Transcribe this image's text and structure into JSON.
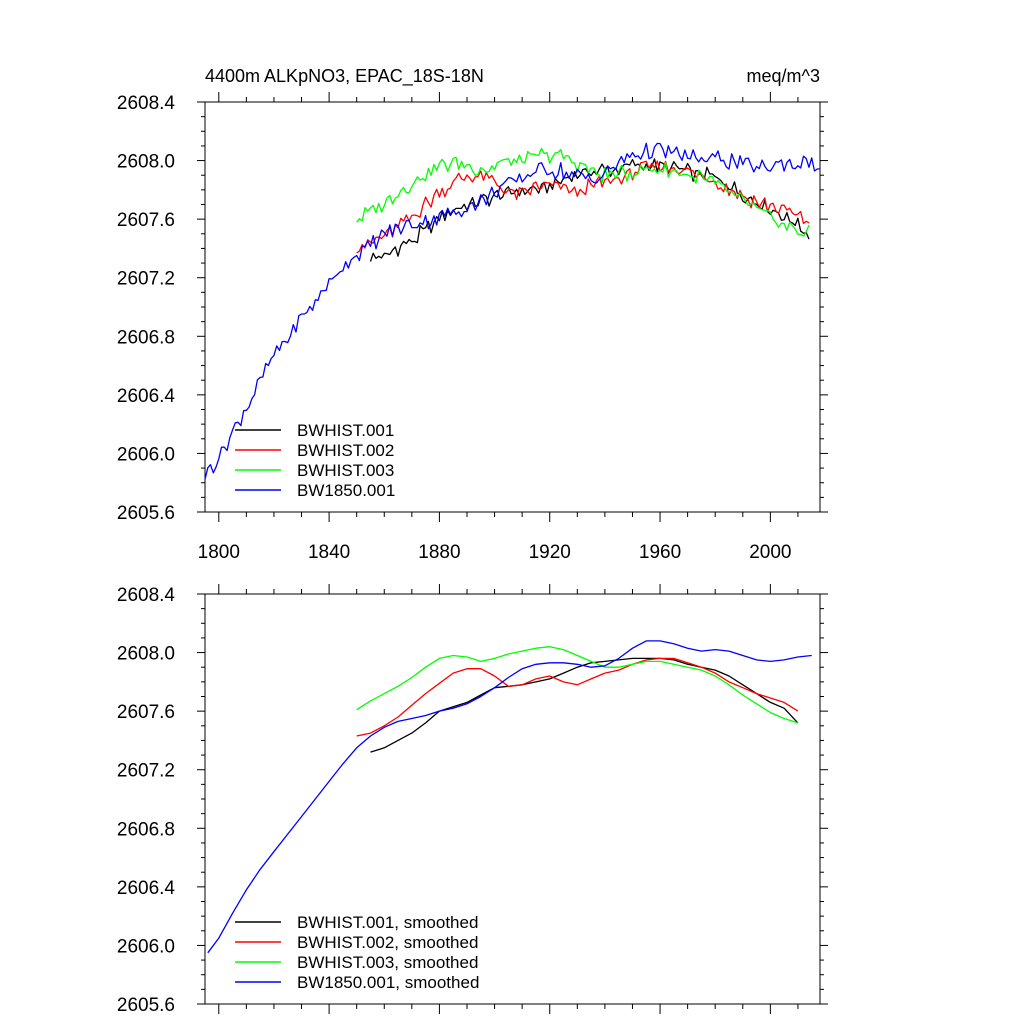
{
  "chart_data": [
    {
      "type": "line",
      "title_left": "4400m ALKpNO3, EPAC_18S-18N",
      "title_right": "meq/m^3",
      "xlim": [
        1795,
        2018
      ],
      "ylim": [
        2605.6,
        2608.4
      ],
      "x_ticks": [
        1800,
        1840,
        1880,
        1920,
        1960,
        2000
      ],
      "x_tick_labels": [
        "1800",
        "1840",
        "1880",
        "1920",
        "1960",
        "2000"
      ],
      "show_x_tick_labels": true,
      "y_ticks": [
        2605.6,
        2606.0,
        2606.4,
        2606.8,
        2607.2,
        2607.6,
        2608.0,
        2608.4
      ],
      "y_tick_labels": [
        "2605.6",
        "2606.0",
        "2606.4",
        "2606.8",
        "2607.2",
        "2607.6",
        "2608.0",
        "2608.4"
      ],
      "grid": false,
      "legend_position": "bottom-left",
      "series": [
        {
          "name": "BWHIST.001",
          "color": "#000000",
          "noisy": true,
          "x": [
            1855,
            1860,
            1865,
            1870,
            1875,
            1880,
            1885,
            1890,
            1895,
            1900,
            1905,
            1910,
            1915,
            1920,
            1925,
            1930,
            1935,
            1940,
            1945,
            1950,
            1955,
            1960,
            1965,
            1970,
            1975,
            1980,
            1985,
            1990,
            1995,
            2000,
            2005,
            2010,
            2014
          ],
          "y": [
            2607.32,
            2607.35,
            2607.4,
            2607.45,
            2607.52,
            2607.6,
            2607.66,
            2607.68,
            2607.72,
            2607.76,
            2607.78,
            2607.79,
            2607.8,
            2607.82,
            2607.86,
            2607.9,
            2607.93,
            2607.94,
            2607.95,
            2607.96,
            2607.96,
            2607.96,
            2607.95,
            2607.92,
            2607.9,
            2607.88,
            2607.84,
            2607.78,
            2607.72,
            2607.66,
            2607.62,
            2607.56,
            2607.5
          ]
        },
        {
          "name": "BWHIST.002",
          "color": "#ff0000",
          "noisy": true,
          "x": [
            1850,
            1855,
            1860,
            1865,
            1870,
            1875,
            1880,
            1885,
            1890,
            1895,
            1900,
            1905,
            1910,
            1915,
            1920,
            1925,
            1930,
            1935,
            1940,
            1945,
            1950,
            1955,
            1960,
            1965,
            1970,
            1975,
            1980,
            1985,
            1990,
            1995,
            2000,
            2005,
            2010,
            2014
          ],
          "y": [
            2607.42,
            2607.44,
            2607.48,
            2607.54,
            2607.62,
            2607.7,
            2607.78,
            2607.85,
            2607.89,
            2607.9,
            2607.86,
            2607.78,
            2607.78,
            2607.82,
            2607.84,
            2607.8,
            2607.78,
            2607.82,
            2607.86,
            2607.88,
            2607.92,
            2607.95,
            2607.96,
            2607.95,
            2607.93,
            2607.9,
            2607.86,
            2607.8,
            2607.76,
            2607.72,
            2607.69,
            2607.66,
            2607.62,
            2607.58
          ]
        },
        {
          "name": "BWHIST.003",
          "color": "#00ff00",
          "noisy": true,
          "x": [
            1850,
            1855,
            1860,
            1865,
            1870,
            1875,
            1880,
            1885,
            1890,
            1895,
            1900,
            1905,
            1910,
            1915,
            1920,
            1925,
            1930,
            1935,
            1940,
            1945,
            1950,
            1955,
            1960,
            1965,
            1970,
            1975,
            1980,
            1985,
            1990,
            1995,
            2000,
            2005,
            2010,
            2014
          ],
          "y": [
            2607.6,
            2607.66,
            2607.72,
            2607.78,
            2607.84,
            2607.9,
            2607.96,
            2607.98,
            2607.97,
            2607.94,
            2607.96,
            2607.99,
            2608.01,
            2608.03,
            2608.04,
            2608.02,
            2607.98,
            2607.94,
            2607.9,
            2607.9,
            2607.92,
            2607.94,
            2607.94,
            2607.92,
            2607.9,
            2607.88,
            2607.84,
            2607.78,
            2607.72,
            2607.66,
            2607.6,
            2607.56,
            2607.52,
            2607.5
          ]
        },
        {
          "name": "BW1850.001",
          "color": "#0000ff",
          "noisy": true,
          "x": [
            1795,
            1800,
            1805,
            1810,
            1815,
            1820,
            1825,
            1830,
            1835,
            1840,
            1845,
            1850,
            1855,
            1860,
            1865,
            1870,
            1875,
            1880,
            1885,
            1890,
            1895,
            1900,
            1905,
            1910,
            1915,
            1920,
            1925,
            1930,
            1935,
            1940,
            1945,
            1950,
            1955,
            1960,
            1965,
            1970,
            1975,
            1980,
            1985,
            1990,
            1995,
            2000,
            2005,
            2010,
            2015,
            2018
          ],
          "y": [
            2605.85,
            2605.98,
            2606.15,
            2606.32,
            2606.5,
            2606.66,
            2606.8,
            2606.92,
            2607.04,
            2607.16,
            2607.27,
            2607.36,
            2607.43,
            2607.5,
            2607.53,
            2607.56,
            2607.58,
            2607.62,
            2607.64,
            2607.68,
            2607.73,
            2607.78,
            2607.84,
            2607.89,
            2607.93,
            2607.94,
            2607.93,
            2607.9,
            2607.87,
            2607.91,
            2607.98,
            2608.04,
            2608.06,
            2608.07,
            2608.05,
            2608.02,
            2608.01,
            2608.02,
            2608.0,
            2607.98,
            2607.95,
            2607.96,
            2607.97,
            2607.98,
            2607.98,
            2607.94
          ]
        }
      ]
    },
    {
      "type": "line",
      "title_left": "",
      "title_right": "",
      "xlim": [
        1795,
        2018
      ],
      "ylim": [
        2605.6,
        2608.4
      ],
      "x_ticks": [
        1800,
        1840,
        1880,
        1920,
        1960,
        2000
      ],
      "x_tick_labels": [],
      "show_x_tick_labels": false,
      "y_ticks": [
        2605.6,
        2606.0,
        2606.4,
        2606.8,
        2607.2,
        2607.6,
        2608.0,
        2608.4
      ],
      "y_tick_labels": [
        "2605.6",
        "2606.0",
        "2606.4",
        "2606.8",
        "2607.2",
        "2607.6",
        "2608.0",
        "2608.4"
      ],
      "grid": false,
      "legend_position": "bottom-left",
      "series": [
        {
          "name": "BWHIST.001, smoothed",
          "color": "#000000",
          "noisy": false,
          "x": [
            1855,
            1860,
            1865,
            1870,
            1875,
            1880,
            1885,
            1890,
            1895,
            1900,
            1905,
            1910,
            1915,
            1920,
            1925,
            1930,
            1935,
            1940,
            1945,
            1950,
            1955,
            1960,
            1965,
            1970,
            1975,
            1980,
            1985,
            1990,
            1995,
            2000,
            2005,
            2010
          ],
          "y": [
            2607.32,
            2607.35,
            2607.4,
            2607.45,
            2607.52,
            2607.6,
            2607.63,
            2607.66,
            2607.71,
            2607.76,
            2607.77,
            2607.78,
            2607.8,
            2607.82,
            2607.86,
            2607.9,
            2607.93,
            2607.94,
            2607.95,
            2607.96,
            2607.96,
            2607.96,
            2607.95,
            2607.92,
            2607.9,
            2607.88,
            2607.84,
            2607.78,
            2607.72,
            2607.66,
            2607.62,
            2607.52
          ]
        },
        {
          "name": "BWHIST.002, smoothed",
          "color": "#ff0000",
          "noisy": false,
          "x": [
            1850,
            1855,
            1860,
            1865,
            1870,
            1875,
            1880,
            1885,
            1890,
            1895,
            1900,
            1905,
            1910,
            1915,
            1920,
            1925,
            1930,
            1935,
            1940,
            1945,
            1950,
            1955,
            1960,
            1965,
            1970,
            1975,
            1980,
            1985,
            1990,
            1995,
            2000,
            2005,
            2010
          ],
          "y": [
            2607.43,
            2607.45,
            2607.5,
            2607.56,
            2607.64,
            2607.72,
            2607.79,
            2607.86,
            2607.89,
            2607.89,
            2607.84,
            2607.77,
            2607.78,
            2607.82,
            2607.84,
            2607.8,
            2607.78,
            2607.82,
            2607.86,
            2607.88,
            2607.92,
            2607.95,
            2607.96,
            2607.96,
            2607.93,
            2607.9,
            2607.86,
            2607.8,
            2607.76,
            2607.72,
            2607.69,
            2607.66,
            2607.6
          ]
        },
        {
          "name": "BWHIST.003, smoothed",
          "color": "#00ff00",
          "noisy": false,
          "x": [
            1850,
            1855,
            1860,
            1865,
            1870,
            1875,
            1880,
            1885,
            1890,
            1895,
            1900,
            1905,
            1910,
            1915,
            1920,
            1925,
            1930,
            1935,
            1940,
            1945,
            1950,
            1955,
            1960,
            1965,
            1970,
            1975,
            1980,
            1985,
            1990,
            1995,
            2000,
            2005,
            2010
          ],
          "y": [
            2607.61,
            2607.67,
            2607.72,
            2607.77,
            2607.83,
            2607.9,
            2607.96,
            2607.98,
            2607.97,
            2607.94,
            2607.96,
            2607.99,
            2608.01,
            2608.03,
            2608.04,
            2608.02,
            2607.98,
            2607.94,
            2607.9,
            2607.9,
            2607.92,
            2607.94,
            2607.94,
            2607.92,
            2607.9,
            2607.88,
            2607.84,
            2607.78,
            2607.71,
            2607.65,
            2607.59,
            2607.55,
            2607.52
          ]
        },
        {
          "name": "BW1850.001, smoothed",
          "color": "#0000ff",
          "noisy": false,
          "x": [
            1796,
            1800,
            1805,
            1810,
            1815,
            1820,
            1825,
            1830,
            1835,
            1840,
            1845,
            1850,
            1855,
            1860,
            1865,
            1870,
            1875,
            1880,
            1885,
            1890,
            1895,
            1900,
            1905,
            1910,
            1915,
            1920,
            1925,
            1930,
            1935,
            1940,
            1945,
            1950,
            1955,
            1960,
            1965,
            1970,
            1975,
            1980,
            1985,
            1990,
            1995,
            2000,
            2005,
            2010,
            2015
          ],
          "y": [
            2605.95,
            2606.05,
            2606.22,
            2606.38,
            2606.52,
            2606.64,
            2606.76,
            2606.88,
            2607.0,
            2607.12,
            2607.24,
            2607.35,
            2607.43,
            2607.49,
            2607.53,
            2607.55,
            2607.57,
            2607.6,
            2607.62,
            2607.65,
            2607.7,
            2607.76,
            2607.83,
            2607.89,
            2607.92,
            2607.93,
            2607.93,
            2607.92,
            2607.9,
            2607.91,
            2607.96,
            2608.03,
            2608.08,
            2608.08,
            2608.06,
            2608.03,
            2608.01,
            2608.02,
            2608.01,
            2607.98,
            2607.95,
            2607.94,
            2607.95,
            2607.97,
            2607.98
          ]
        }
      ]
    }
  ]
}
